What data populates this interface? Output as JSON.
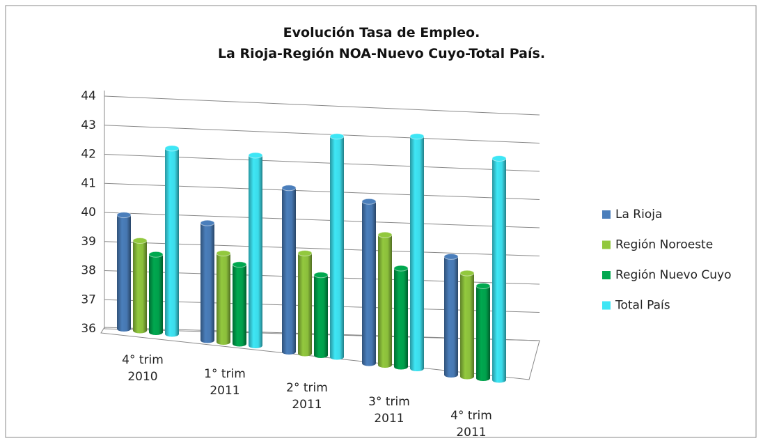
{
  "chart_data": {
    "type": "bar3d",
    "title": "Evolución Tasa de Empleo.",
    "subtitle": "La Rioja-Región NOA-Nuevo Cuyo-Total País.",
    "categories": [
      "4° trim 2010",
      "1° trim 2011",
      "2° trim 2011",
      "3° trim 2011",
      "4° trim 2011"
    ],
    "series": [
      {
        "name": "La Rioja",
        "color": "#4a7ebb",
        "values": [
          39.8,
          39.7,
          40.9,
          40.6,
          39.2
        ]
      },
      {
        "name": "Región Noroeste",
        "color": "#92c83e",
        "values": [
          39.0,
          38.8,
          39.0,
          39.7,
          38.8
        ]
      },
      {
        "name": "Región Nuevo Cuyo",
        "color": "#00a84f",
        "values": [
          38.6,
          38.5,
          38.4,
          38.8,
          38.5
        ]
      },
      {
        "name": "Total País",
        "color": "#3ee6f5",
        "values": [
          42.2,
          42.0,
          42.6,
          42.6,
          42.0
        ]
      }
    ],
    "ylim": [
      36,
      44
    ],
    "yticks": [
      36,
      37,
      38,
      39,
      40,
      41,
      42,
      43,
      44
    ],
    "grid": true,
    "legend": "right"
  }
}
